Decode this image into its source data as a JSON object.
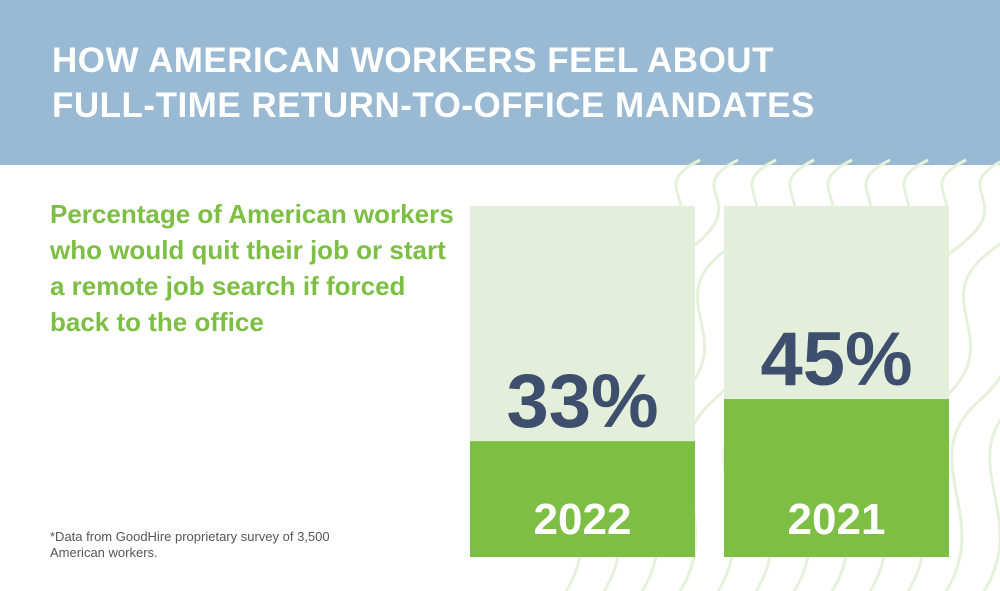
{
  "header": {
    "title_line1": "HOW AMERICAN WORKERS FEEL ABOUT",
    "title_line2": "FULL-TIME RETURN-TO-OFFICE MANDATES"
  },
  "subtitle": "Percentage of American workers who would quit their job or start a remote job search if forced back to the office",
  "footnote_line1": "*Data from GoodHire proprietary survey of 3,500",
  "footnote_line2": "American workers.",
  "colors": {
    "header_bg": "#9ab9d3",
    "accent_green": "#7dbf44",
    "bar_bg": "#e3efda",
    "value_text": "#3d4f6c"
  },
  "chart_data": {
    "type": "bar",
    "categories": [
      "2022",
      "2021"
    ],
    "values": [
      33,
      45
    ],
    "value_labels": [
      "33%",
      "45%"
    ],
    "ylim": [
      0,
      100
    ],
    "grid": false
  }
}
